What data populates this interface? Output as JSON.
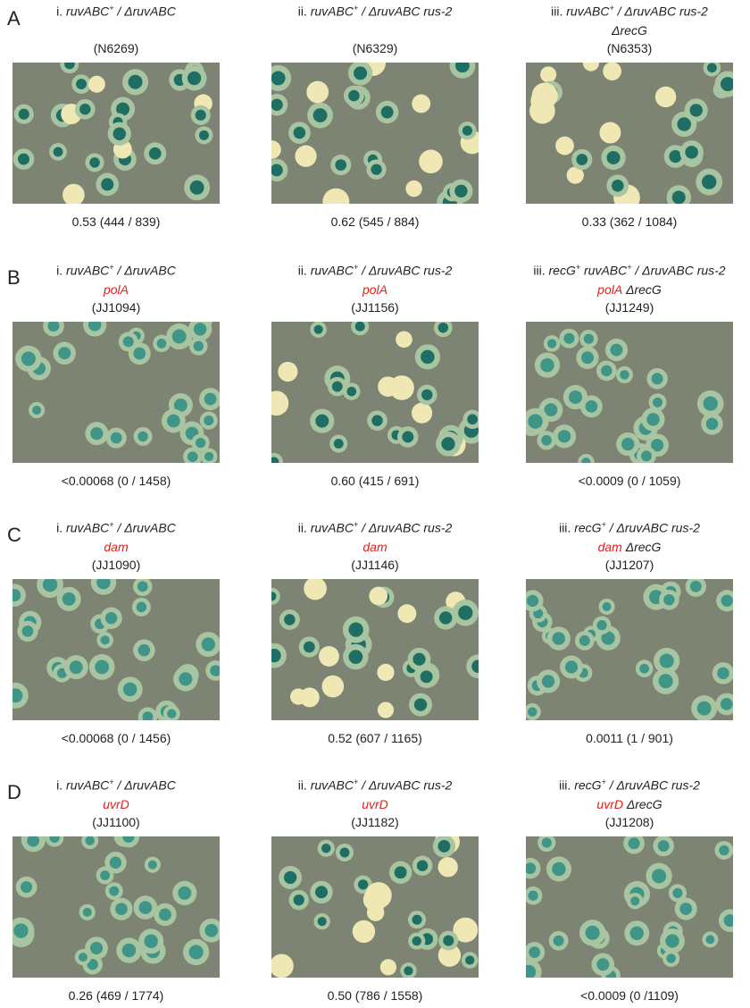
{
  "panels": [
    {
      "letter": "A",
      "cells": [
        {
          "title": "i. ruvABC+ / ΔruvABC",
          "strain": "(N6269)",
          "result": "0.53 (444 / 839)"
        },
        {
          "title": "ii. ruvABC+ / ΔruvABC rus-2",
          "strain": "(N6329)",
          "result": "0.62 (545 / 884)"
        },
        {
          "title": "iii. ruvABC+ / ΔruvABC rus-2",
          "extra": "ΔrecG",
          "strain": "(N6353)",
          "result": "0.33 (362 / 1084)"
        }
      ]
    },
    {
      "letter": "B",
      "cells": [
        {
          "title": "i. ruvABC+ / ΔruvABC",
          "mutation": "polA",
          "strain": "(JJ1094)",
          "result": "<0.00068 (0 / 1458)"
        },
        {
          "title": "ii. ruvABC+ / ΔruvABC rus-2",
          "mutation": "polA",
          "strain": "(JJ1156)",
          "result": "0.60 (415 / 691)"
        },
        {
          "title": "iii. recG+ ruvABC+ / ΔruvABC rus-2",
          "mutation": "polA",
          "extra": "ΔrecG",
          "strain": "(JJ1249)",
          "result": "<0.0009 (0 / 1059)"
        }
      ]
    },
    {
      "letter": "C",
      "cells": [
        {
          "title": "i. ruvABC+ / ΔruvABC",
          "mutation": "dam",
          "strain": "(JJ1090)",
          "result": "<0.00068 (0 / 1456)"
        },
        {
          "title": "ii. ruvABC+ / ΔruvABC rus-2",
          "mutation": "dam",
          "strain": "(JJ1146)",
          "result": "0.52 (607 / 1165)"
        },
        {
          "title": "iii. recG+ / ΔruvABC rus-2",
          "mutation": "dam",
          "extra": "ΔrecG",
          "strain": "(JJ1207)",
          "result": "0.0011 (1 / 901)"
        }
      ]
    },
    {
      "letter": "D",
      "cells": [
        {
          "title": "i. ruvABC+ / ΔruvABC",
          "mutation": "uvrD",
          "strain": "(JJ1100)",
          "result": "0.26 (469 / 1774)"
        },
        {
          "title": "ii. ruvABC+ / ΔruvABC rus-2",
          "mutation": "uvrD",
          "strain": "(JJ1182)",
          "result": "0.50 (786 / 1558)"
        },
        {
          "title": "iii. recG+ / ΔruvABC rus-2",
          "mutation": "uvrD",
          "extra": "ΔrecG",
          "strain": "(JJ1208)",
          "result": "<0.0009 (0 /1109)"
        }
      ]
    }
  ]
}
